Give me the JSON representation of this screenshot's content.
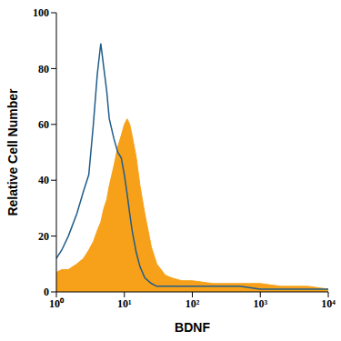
{
  "chart_data": {
    "type": "area",
    "x_label": "BDNF",
    "y_label": "Relative Cell Number",
    "log": "x",
    "grid": false,
    "xlim": [
      1,
      10000
    ],
    "xticks": [
      {
        "value": 1,
        "label": "10⁰"
      },
      {
        "value": 10,
        "label": "10¹"
      },
      {
        "value": 100,
        "label": "10²"
      },
      {
        "value": 1000,
        "label": "10³"
      },
      {
        "value": 10000,
        "label": "10⁴"
      }
    ],
    "ylim": [
      0,
      100
    ],
    "yticks": [
      0,
      20,
      40,
      60,
      80,
      100
    ],
    "x": [
      1,
      1.2,
      1.5,
      2,
      2.5,
      3,
      3.5,
      4,
      4.5,
      5,
      5.5,
      6,
      7,
      8,
      9,
      10,
      11,
      12,
      13,
      15,
      17,
      20,
      25,
      30,
      40,
      50,
      70,
      100,
      200,
      500,
      1000,
      2000,
      5000,
      10000
    ],
    "series": [
      {
        "type": "area",
        "color": "#f7a11a",
        "values": [
          7,
          8,
          8,
          10,
          12,
          15,
          18,
          22,
          25,
          30,
          33,
          38,
          45,
          52,
          56,
          60,
          62,
          60,
          56,
          48,
          38,
          28,
          16,
          10,
          6,
          5,
          4,
          4,
          3,
          3,
          3,
          2,
          2,
          1
        ]
      },
      {
        "type": "line",
        "color": "#1f5c8a",
        "values": [
          12,
          15,
          20,
          28,
          36,
          42,
          60,
          78,
          89,
          80,
          72,
          62,
          55,
          50,
          48,
          42,
          35,
          28,
          22,
          14,
          9,
          5,
          3,
          2,
          2,
          2,
          2,
          2,
          2,
          2,
          1,
          1,
          1,
          1
        ]
      }
    ]
  }
}
